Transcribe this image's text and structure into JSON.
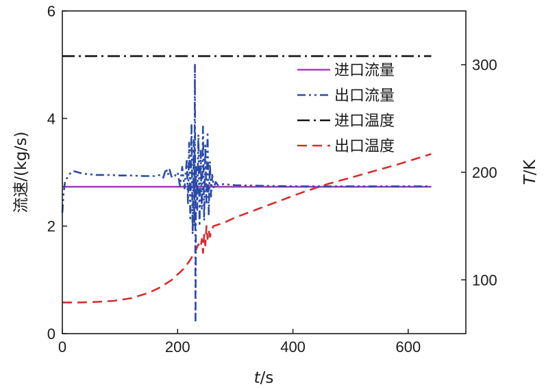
{
  "chart_data": {
    "type": "line",
    "title": "",
    "xlabel_italic": "t",
    "xlabel_rest": "/s",
    "ylabel_left": "流速/(kg/s)",
    "ylabel_right_italic": "T",
    "ylabel_right_rest": "/K",
    "xlim": [
      0,
      700
    ],
    "ylim_left": [
      0,
      6
    ],
    "ylim_right": [
      50,
      350
    ],
    "x_ticks": [
      0,
      200,
      400,
      600
    ],
    "y_left_ticks": [
      0,
      2,
      4,
      6
    ],
    "y_right_ticks": [
      100,
      200,
      300
    ],
    "legend_position": "top-right",
    "series": [
      {
        "name": "进口流量",
        "axis": "left",
        "color": "#a040b8",
        "dash": "solid",
        "points": [
          [
            0,
            2.73
          ],
          [
            640,
            2.73
          ]
        ]
      },
      {
        "name": "出口流量",
        "axis": "left",
        "color": "#2a4aa8",
        "dash": "dashdotdot",
        "points": [
          [
            0,
            2.25
          ],
          [
            2,
            2.6
          ],
          [
            5,
            2.85
          ],
          [
            10,
            2.92
          ],
          [
            15,
            3.0
          ],
          [
            20,
            3.02
          ],
          [
            30,
            2.99
          ],
          [
            40,
            2.97
          ],
          [
            60,
            2.95
          ],
          [
            80,
            2.95
          ],
          [
            100,
            2.94
          ],
          [
            120,
            2.94
          ],
          [
            140,
            2.93
          ],
          [
            160,
            2.93
          ],
          [
            170,
            2.95
          ],
          [
            175,
            2.9
          ],
          [
            180,
            3.07
          ],
          [
            183,
            2.95
          ],
          [
            186,
            3.05
          ],
          [
            190,
            2.9
          ],
          [
            195,
            2.93
          ],
          [
            200,
            3.0
          ],
          [
            204,
            2.75
          ],
          [
            208,
            3.1
          ],
          [
            212,
            2.7
          ],
          [
            216,
            3.25
          ],
          [
            218,
            2.4
          ],
          [
            220,
            3.55
          ],
          [
            222,
            2.1
          ],
          [
            224,
            3.9
          ],
          [
            226,
            1.85
          ],
          [
            228,
            3.6
          ],
          [
            229,
            2.0
          ],
          [
            230,
            5.0
          ],
          [
            231,
            0.2
          ],
          [
            232,
            3.1
          ],
          [
            234,
            2.3
          ],
          [
            236,
            3.7
          ],
          [
            238,
            2.0
          ],
          [
            240,
            3.4
          ],
          [
            242,
            2.3
          ],
          [
            244,
            3.85
          ],
          [
            246,
            2.1
          ],
          [
            248,
            3.5
          ],
          [
            250,
            2.4
          ],
          [
            252,
            3.75
          ],
          [
            254,
            2.2
          ],
          [
            256,
            3.2
          ],
          [
            258,
            2.55
          ],
          [
            260,
            2.95
          ],
          [
            263,
            2.7
          ],
          [
            266,
            2.82
          ],
          [
            270,
            2.76
          ],
          [
            280,
            2.78
          ],
          [
            300,
            2.76
          ],
          [
            340,
            2.75
          ],
          [
            400,
            2.74
          ],
          [
            500,
            2.74
          ],
          [
            640,
            2.74
          ]
        ]
      },
      {
        "name": "进口温度",
        "axis": "right",
        "color": "#111111",
        "dash": "dashdot",
        "points": [
          [
            0,
            308
          ],
          [
            640,
            308
          ]
        ]
      },
      {
        "name": "出口温度",
        "axis": "right",
        "color": "#d82b2b",
        "dash": "dashed",
        "points": [
          [
            0,
            79
          ],
          [
            30,
            79
          ],
          [
            60,
            79.5
          ],
          [
            90,
            80.5
          ],
          [
            120,
            83
          ],
          [
            150,
            88
          ],
          [
            170,
            93
          ],
          [
            190,
            100
          ],
          [
            210,
            110
          ],
          [
            220,
            117
          ],
          [
            228,
            124
          ],
          [
            232,
            128
          ],
          [
            236,
            133
          ],
          [
            240,
            130
          ],
          [
            242,
            138
          ],
          [
            244,
            125
          ],
          [
            246,
            142
          ],
          [
            248,
            132
          ],
          [
            250,
            150
          ],
          [
            252,
            138
          ],
          [
            254,
            146
          ],
          [
            256,
            140
          ],
          [
            258,
            144
          ],
          [
            262,
            150
          ],
          [
            280,
            153
          ],
          [
            300,
            158
          ],
          [
            340,
            166
          ],
          [
            380,
            174
          ],
          [
            420,
            182
          ],
          [
            460,
            189
          ],
          [
            500,
            195
          ],
          [
            540,
            201
          ],
          [
            580,
            207
          ],
          [
            610,
            212
          ],
          [
            640,
            217
          ]
        ]
      }
    ]
  }
}
